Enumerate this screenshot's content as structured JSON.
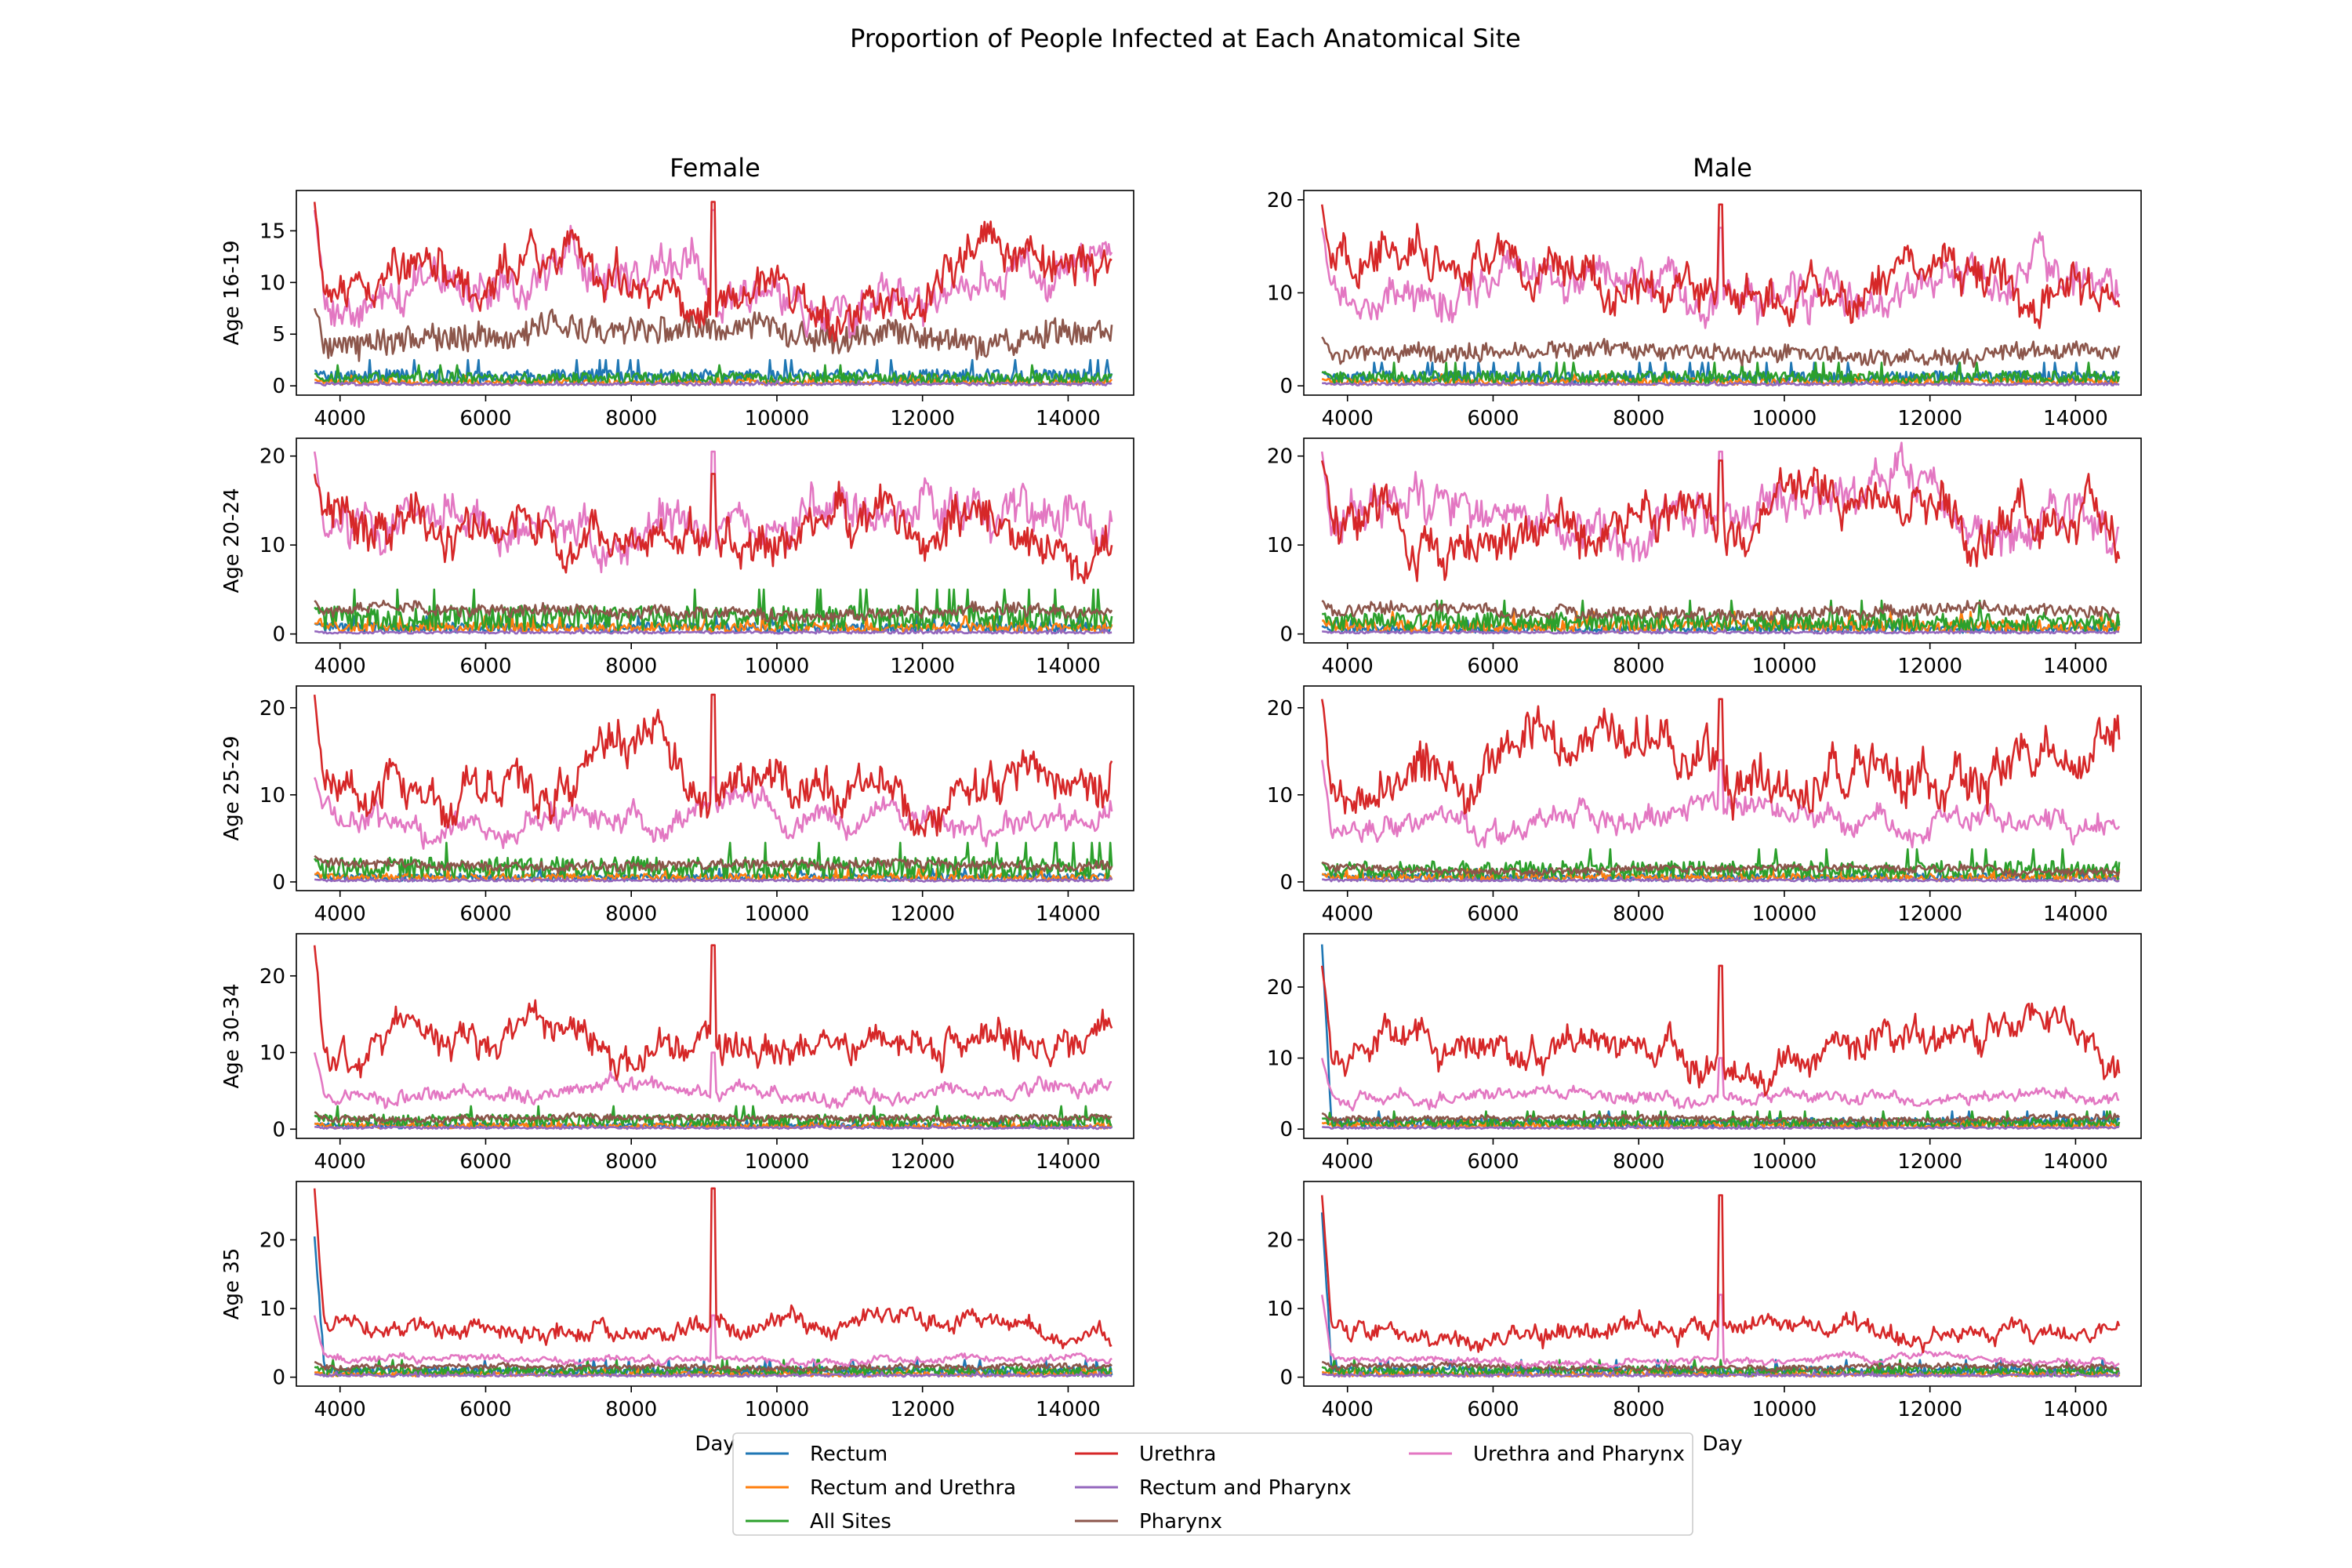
{
  "chart_data": {
    "type": "line",
    "title": "Proportion of People Infected at Each Anatomical Site",
    "columns": [
      "Female",
      "Male"
    ],
    "rows": [
      "Age 16-19",
      "Age 20-24",
      "Age 25-29",
      "Age 30-34",
      "Age 35"
    ],
    "xlabel": "Day",
    "xlim": [
      3400,
      14900
    ],
    "xticks": [
      4000,
      6000,
      8000,
      10000,
      12000,
      14000
    ],
    "x_range": [
      3650,
      14600
    ],
    "grid": false,
    "legend": {
      "placement": "bottom-center",
      "columns": 3,
      "entries": [
        "Rectum",
        "Rectum and Urethra",
        "All Sites",
        "Urethra",
        "Rectum and Pharynx",
        "Pharynx",
        "Urethra and Pharynx"
      ]
    },
    "series_colors": {
      "Rectum": "#1f77b4",
      "Rectum and Urethra": "#ff7f0e",
      "All Sites": "#2ca02c",
      "Urethra": "#d62728",
      "Rectum and Pharynx": "#9467bd",
      "Pharynx": "#8c564b",
      "Urethra and Pharynx": "#e377c2"
    },
    "panels": [
      {
        "column": "Female",
        "row": "Age 16-19",
        "ylim": [
          -0.9,
          18.9
        ],
        "yticks": [
          0,
          5,
          10,
          15
        ],
        "approx_levels": {
          "Rectum": 1,
          "Rectum and Urethra": 0.4,
          "All Sites": 0.8,
          "Urethra": 9.5,
          "Rectum and Pharynx": 0.2,
          "Pharynx": 5,
          "Urethra and Pharynx": 10
        },
        "peaks": {
          "Urethra": 17.8,
          "Urethra and Pharynx": 17
        }
      },
      {
        "column": "Male",
        "row": "Age 16-19",
        "ylim": [
          -1,
          21
        ],
        "yticks": [
          0,
          10,
          20
        ],
        "approx_levels": {
          "Rectum": 1,
          "Rectum and Urethra": 0.5,
          "All Sites": 1,
          "Urethra": 11,
          "Rectum and Pharynx": 0.2,
          "Pharynx": 3.5,
          "Urethra and Pharynx": 10.5
        },
        "peaks": {
          "Urethra": 19.5,
          "Urethra and Pharynx": 17
        }
      },
      {
        "column": "Female",
        "row": "Age 20-24",
        "ylim": [
          -1,
          22
        ],
        "yticks": [
          0,
          10,
          20
        ],
        "approx_levels": {
          "Rectum": 0.8,
          "Rectum and Urethra": 0.8,
          "All Sites": 2,
          "Urethra": 12,
          "Rectum and Pharynx": 0.2,
          "Pharynx": 2.5,
          "Urethra and Pharynx": 12
        },
        "peaks": {
          "Urethra": 18,
          "Urethra and Pharynx": 20.5
        }
      },
      {
        "column": "Male",
        "row": "Age 20-24",
        "ylim": [
          -1,
          22
        ],
        "yticks": [
          0,
          10,
          20
        ],
        "approx_levels": {
          "Rectum": 0.6,
          "Rectum and Urethra": 1,
          "All Sites": 1.5,
          "Urethra": 13,
          "Rectum and Pharynx": 0.2,
          "Pharynx": 2.5,
          "Urethra and Pharynx": 12
        },
        "peaks": {
          "Urethra": 19.5,
          "Urethra and Pharynx": 20.5
        }
      },
      {
        "column": "Female",
        "row": "Age 25-29",
        "ylim": [
          -1,
          22.5
        ],
        "yticks": [
          0,
          10,
          20
        ],
        "approx_levels": {
          "Rectum": 0.6,
          "Rectum and Urethra": 0.6,
          "All Sites": 1.8,
          "Urethra": 12,
          "Rectum and Pharynx": 0.2,
          "Pharynx": 2,
          "Urethra and Pharynx": 7.5
        },
        "peaks": {
          "Urethra": 21.5,
          "Urethra and Pharynx": 12
        }
      },
      {
        "column": "Male",
        "row": "Age 25-29",
        "ylim": [
          -1,
          22.5
        ],
        "yticks": [
          0,
          10,
          20
        ],
        "approx_levels": {
          "Rectum": 0.6,
          "Rectum and Urethra": 0.6,
          "All Sites": 1.5,
          "Urethra": 14,
          "Rectum and Pharynx": 0.2,
          "Pharynx": 1.5,
          "Urethra and Pharynx": 7
        },
        "peaks": {
          "Urethra": 21,
          "Urethra and Pharynx": 14
        }
      },
      {
        "column": "Female",
        "row": "Age 30-34",
        "ylim": [
          -1.2,
          25.5
        ],
        "yticks": [
          0,
          10,
          20
        ],
        "approx_levels": {
          "Rectum": 0.5,
          "Rectum and Urethra": 0.5,
          "All Sites": 1.2,
          "Urethra": 11,
          "Rectum and Pharynx": 0.2,
          "Pharynx": 1.5,
          "Urethra and Pharynx": 5
        },
        "peaks": {
          "Urethra": 24,
          "Urethra and Pharynx": 10
        }
      },
      {
        "column": "Male",
        "row": "Age 30-34",
        "ylim": [
          -1.3,
          27.5
        ],
        "yticks": [
          0,
          10,
          20
        ],
        "approx_levels": {
          "Rectum": 1,
          "Rectum and Urethra": 0.6,
          "All Sites": 1,
          "Urethra": 11.5,
          "Rectum and Pharynx": 0.2,
          "Pharynx": 1.5,
          "Urethra and Pharynx": 4.5
        },
        "peaks": {
          "Rectum": 26,
          "Urethra": 23,
          "Urethra and Pharynx": 10
        }
      },
      {
        "column": "Female",
        "row": "Age 35",
        "ylim": [
          -1.3,
          28.5
        ],
        "yticks": [
          0,
          10,
          20
        ],
        "approx_levels": {
          "Rectum": 1,
          "Rectum and Urethra": 0.5,
          "All Sites": 1,
          "Urethra": 7,
          "Rectum and Pharynx": 0.3,
          "Pharynx": 1.5,
          "Urethra and Pharynx": 2.5
        },
        "peaks": {
          "Rectum": 20.5,
          "Urethra": 27.5,
          "Urethra and Pharynx": 9
        }
      },
      {
        "column": "Male",
        "row": "Age 35",
        "ylim": [
          -1.3,
          28.5
        ],
        "yticks": [
          0,
          10,
          20
        ],
        "approx_levels": {
          "Rectum": 1,
          "Rectum and Urethra": 0.5,
          "All Sites": 1,
          "Urethra": 7,
          "Rectum and Pharynx": 0.3,
          "Pharynx": 1.5,
          "Urethra and Pharynx": 2.5
        },
        "peaks": {
          "Rectum": 24,
          "Urethra": 26.5,
          "Urethra and Pharynx": 12
        }
      }
    ]
  }
}
